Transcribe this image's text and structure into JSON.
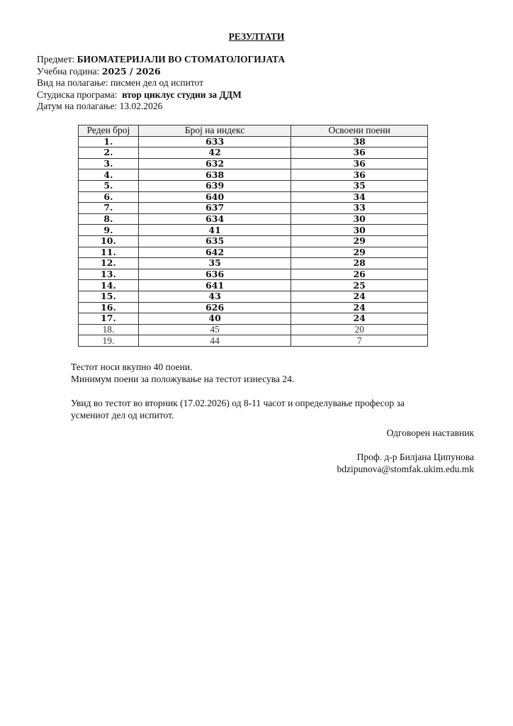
{
  "title": "РЕЗУЛТАТИ",
  "meta": {
    "subject_label": "Предмет: ",
    "subject": "БИОМАТЕРИЈАЛИ ВО СТОМАТОЛОГИЈАТА",
    "year_label": "Учебна година: ",
    "year": "2025 / 2026",
    "exam_type": "Вид на полагање: писмен дел од испитот",
    "program_label": "Студиска програма:  ",
    "program": "втор циклус студии за ДДМ",
    "date": "Датум на полагање: 13.02.2026"
  },
  "table": {
    "headers": [
      "Реден број",
      "Број на индекс",
      "Освоени поени"
    ],
    "rows": [
      {
        "no": "1.",
        "index": "633",
        "points": "38",
        "bold": true
      },
      {
        "no": "2.",
        "index": "42",
        "points": "36",
        "bold": true
      },
      {
        "no": "3.",
        "index": "632",
        "points": "36",
        "bold": true
      },
      {
        "no": "4.",
        "index": "638",
        "points": "36",
        "bold": true
      },
      {
        "no": "5.",
        "index": "639",
        "points": "35",
        "bold": true
      },
      {
        "no": "6.",
        "index": "640",
        "points": "34",
        "bold": true
      },
      {
        "no": "7.",
        "index": "637",
        "points": "33",
        "bold": true
      },
      {
        "no": "8.",
        "index": "634",
        "points": "30",
        "bold": true
      },
      {
        "no": "9.",
        "index": "41",
        "points": "30",
        "bold": true
      },
      {
        "no": "10.",
        "index": "635",
        "points": "29",
        "bold": true
      },
      {
        "no": "11.",
        "index": "642",
        "points": "29",
        "bold": true
      },
      {
        "no": "12.",
        "index": "35",
        "points": "28",
        "bold": true
      },
      {
        "no": "13.",
        "index": "636",
        "points": "26",
        "bold": true
      },
      {
        "no": "14.",
        "index": "641",
        "points": "25",
        "bold": true
      },
      {
        "no": "15.",
        "index": "43",
        "points": "24",
        "bold": true
      },
      {
        "no": "16.",
        "index": "626",
        "points": "24",
        "bold": true
      },
      {
        "no": "17.",
        "index": "40",
        "points": "24",
        "bold": true
      },
      {
        "no": "18.",
        "index": "45",
        "points": "20",
        "bold": false
      },
      {
        "no": "19.",
        "index": "44",
        "points": "7",
        "bold": false
      }
    ]
  },
  "notes": {
    "line1": "Тестот носи вкупно 40 поени.",
    "line2": "Минимум поени за положување на тестот изнесува 24.",
    "line3": "Увид во тестот во вторник (17.02.2026) од 8-11 часот и определување професор за",
    "line4": "усмениот дел од испитот."
  },
  "signature": {
    "role": "Одговорен наставник",
    "name": "Проф. д-р Билјана Ципунова",
    "email": "bdzipunova@stomfak.ukim.edu.mk"
  }
}
